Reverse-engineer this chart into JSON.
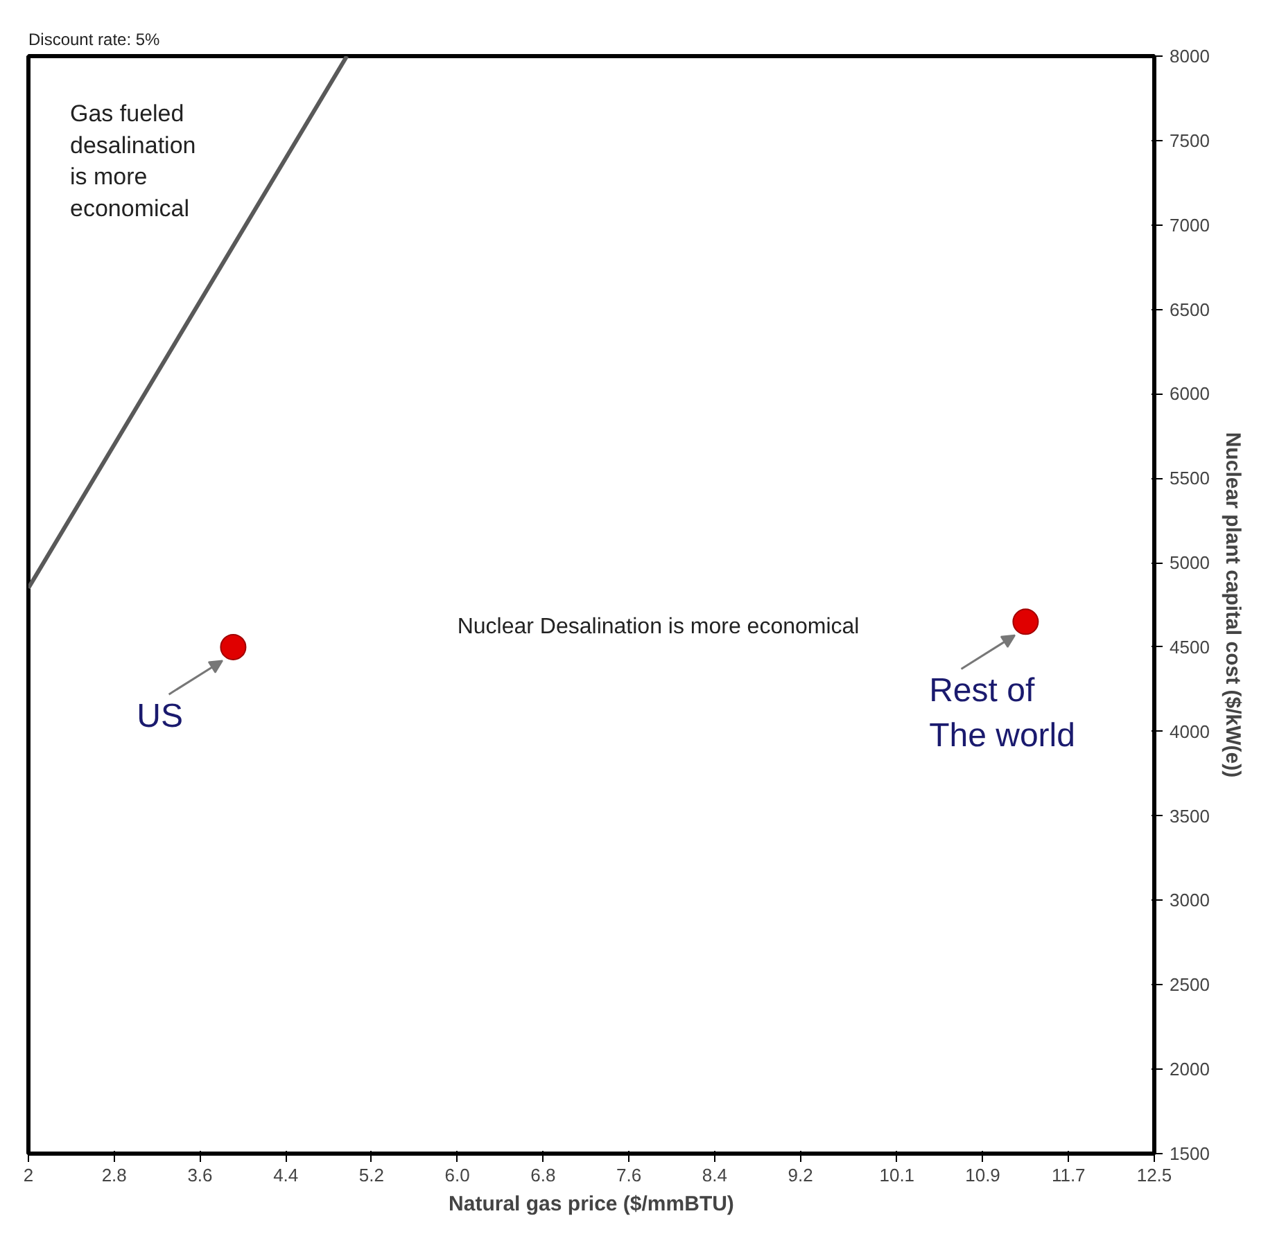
{
  "chart_data": {
    "type": "scatter",
    "xlabel": "Natural gas price ($/mmBTU)",
    "ylabel": "Nuclear plant capital cost ($/kW(e))",
    "xlim": [
      2,
      12.5
    ],
    "ylim": [
      1500,
      8000
    ],
    "xticks": [
      2,
      2.8,
      3.6,
      4.4,
      5.2,
      {
        "value": 6,
        "label": "6.0"
      },
      6.8,
      7.6,
      8.4,
      9.2,
      10.1,
      10.9,
      11.7,
      12.5
    ],
    "yticks": [
      1500,
      2000,
      2500,
      3000,
      3500,
      4000,
      4500,
      5000,
      5500,
      6000,
      6500,
      7000,
      7500,
      8000
    ],
    "series": [
      {
        "type": "line",
        "color": "#595959",
        "x": [
          2,
          4.97
        ],
        "values": [
          4850,
          8000
        ]
      },
      {
        "marker": "circle",
        "color": "#e00000",
        "x": [
          3.91,
          11.3
        ],
        "values": [
          4500,
          4650
        ]
      }
    ],
    "annotations": [
      "Discount rate: 5%",
      "Gas fueled\n desalination\n is more\neconomical",
      "Nuclear Desalination is more economical",
      {
        "text": "US",
        "x": 3.91,
        "y": 4500
      },
      {
        "text": "Rest of\nThe world",
        "x": 11.3,
        "y": 4650
      }
    ]
  }
}
